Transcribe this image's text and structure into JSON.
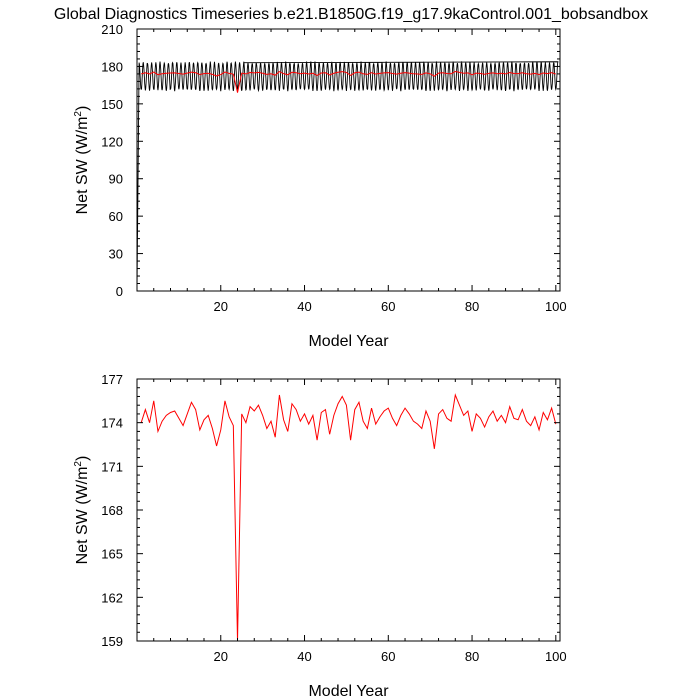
{
  "title": "Global Diagnostics Timeseries b.e21.B1850G.f19_g17.9kaControl.001_bobsandbox",
  "chart_data": [
    {
      "type": "line",
      "panel": "top",
      "xlabel": "Model Year",
      "ylabel_main": "Net SW (W/m",
      "ylabel_sup": "2",
      "ylabel_tail": ")",
      "xlim": [
        0,
        101
      ],
      "ylim": [
        0,
        210
      ],
      "xticks": [
        20,
        40,
        60,
        80,
        100
      ],
      "yticks": [
        0,
        30,
        60,
        90,
        120,
        150,
        180,
        210
      ],
      "series": [
        {
          "color": "#000000",
          "description": "monthly global mean, oscillating ~160-184",
          "seasonal_min": 160,
          "seasonal_max": 184,
          "spinup_start": [
            0,
            0
          ],
          "spinup_end": [
            25.5,
            183
          ]
        },
        {
          "color": "#ff0000",
          "description": "annual global mean",
          "x_start": 1,
          "x_end": 100
        }
      ]
    },
    {
      "type": "line",
      "panel": "bottom",
      "xlabel": "Model Year",
      "ylabel_main": "Net SW (W/m",
      "ylabel_sup": "2",
      "ylabel_tail": ")",
      "xlim": [
        0,
        101
      ],
      "ylim": [
        159,
        177
      ],
      "xticks": [
        20,
        40,
        60,
        80,
        100
      ],
      "yticks": [
        159,
        162,
        165,
        168,
        171,
        174,
        177
      ],
      "series": [
        {
          "color": "#ff0000",
          "x_start": 1,
          "values": [
            174.0,
            174.9,
            174.0,
            175.5,
            173.4,
            174.1,
            174.5,
            174.7,
            174.8,
            174.3,
            173.8,
            174.6,
            175.4,
            174.9,
            173.5,
            174.2,
            174.5,
            173.6,
            172.4,
            173.5,
            175.5,
            174.4,
            173.8,
            159.0,
            174.6,
            174.0,
            175.1,
            174.8,
            175.2,
            174.5,
            173.6,
            174.1,
            173.0,
            175.9,
            174.2,
            173.4,
            175.3,
            174.9,
            174.1,
            174.6,
            173.9,
            174.5,
            172.8,
            174.7,
            174.9,
            173.2,
            174.5,
            175.3,
            175.8,
            175.2,
            172.8,
            174.9,
            175.4,
            174.1,
            173.6,
            175.0,
            173.9,
            174.4,
            174.8,
            175.0,
            174.3,
            173.8,
            174.5,
            175.0,
            174.6,
            174.1,
            173.9,
            173.6,
            174.8,
            174.1,
            172.2,
            174.6,
            174.9,
            174.3,
            174.1,
            175.9,
            175.2,
            174.5,
            174.8,
            173.4,
            174.6,
            174.3,
            173.7,
            174.4,
            174.8,
            174.1,
            174.5,
            174.0,
            175.1,
            174.3,
            174.2,
            174.9,
            174.1,
            173.8,
            174.4,
            173.5,
            174.7,
            174.2,
            175.0,
            173.9
          ]
        }
      ]
    }
  ]
}
